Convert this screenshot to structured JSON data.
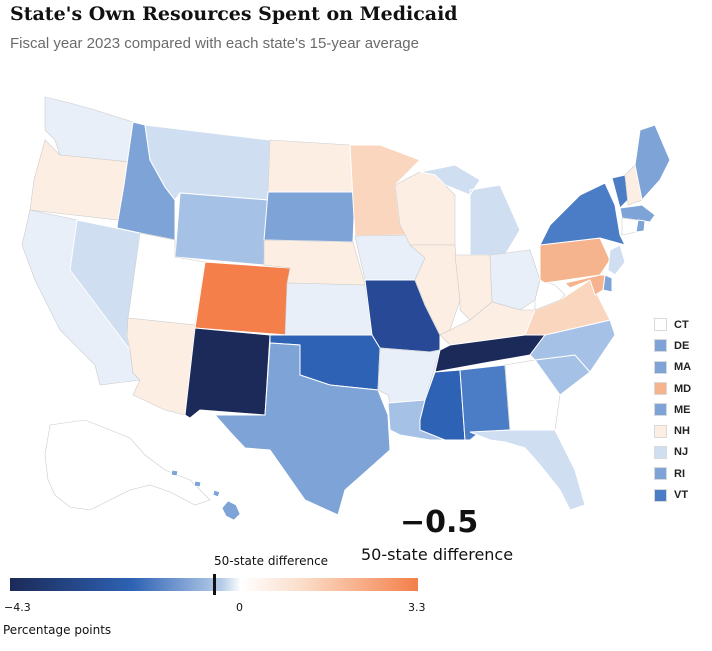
{
  "title": "State's Own Resources Spent on Medicaid",
  "subtitle": "Fiscal year 2023 compared with each state's 15-year average",
  "colors": {
    "darkest_navy": "#1b2a58",
    "dark_blue": "#284a96",
    "mid_blue": "#2e62b4",
    "blue": "#4b7cc6",
    "light_blue": "#7ea3d7",
    "pale_blue": "#a6c1e6",
    "very_pale_blue": "#cfdff1",
    "faint_blue": "#e8eff8",
    "white": "#ffffff",
    "faint_orange": "#fdeee4",
    "pale_orange": "#f9d6bd",
    "light_orange": "#f5b48d",
    "orange": "#f47f4a",
    "border": "#ffffff",
    "outline": "#cccccc"
  },
  "map": {
    "states": [
      {
        "abbr": "WA",
        "fill": "faint_blue"
      },
      {
        "abbr": "OR",
        "fill": "faint_orange"
      },
      {
        "abbr": "CA",
        "fill": "faint_blue"
      },
      {
        "abbr": "NV",
        "fill": "very_pale_blue"
      },
      {
        "abbr": "ID",
        "fill": "light_blue"
      },
      {
        "abbr": "MT",
        "fill": "very_pale_blue"
      },
      {
        "abbr": "WY",
        "fill": "pale_blue"
      },
      {
        "abbr": "UT",
        "fill": "white"
      },
      {
        "abbr": "AZ",
        "fill": "faint_orange"
      },
      {
        "abbr": "CO",
        "fill": "orange"
      },
      {
        "abbr": "NM",
        "fill": "darkest_navy"
      },
      {
        "abbr": "ND",
        "fill": "faint_orange"
      },
      {
        "abbr": "SD",
        "fill": "light_blue"
      },
      {
        "abbr": "NE",
        "fill": "faint_orange"
      },
      {
        "abbr": "KS",
        "fill": "faint_blue"
      },
      {
        "abbr": "OK",
        "fill": "mid_blue"
      },
      {
        "abbr": "TX",
        "fill": "light_blue"
      },
      {
        "abbr": "MN",
        "fill": "pale_orange"
      },
      {
        "abbr": "IA",
        "fill": "faint_blue"
      },
      {
        "abbr": "MO",
        "fill": "dark_blue"
      },
      {
        "abbr": "AR",
        "fill": "faint_blue"
      },
      {
        "abbr": "LA",
        "fill": "pale_blue"
      },
      {
        "abbr": "WI",
        "fill": "faint_orange"
      },
      {
        "abbr": "IL",
        "fill": "faint_orange"
      },
      {
        "abbr": "MI",
        "fill": "very_pale_blue"
      },
      {
        "abbr": "IN",
        "fill": "faint_orange"
      },
      {
        "abbr": "OH",
        "fill": "faint_blue"
      },
      {
        "abbr": "KY",
        "fill": "faint_orange"
      },
      {
        "abbr": "TN",
        "fill": "darkest_navy"
      },
      {
        "abbr": "MS",
        "fill": "mid_blue"
      },
      {
        "abbr": "AL",
        "fill": "blue"
      },
      {
        "abbr": "GA",
        "fill": "white"
      },
      {
        "abbr": "FL",
        "fill": "very_pale_blue"
      },
      {
        "abbr": "SC",
        "fill": "pale_blue"
      },
      {
        "abbr": "NC",
        "fill": "pale_blue"
      },
      {
        "abbr": "VA",
        "fill": "pale_orange"
      },
      {
        "abbr": "WV",
        "fill": "white"
      },
      {
        "abbr": "PA",
        "fill": "light_orange"
      },
      {
        "abbr": "NY",
        "fill": "blue"
      },
      {
        "abbr": "VT",
        "fill": "blue"
      },
      {
        "abbr": "NH",
        "fill": "faint_orange"
      },
      {
        "abbr": "ME",
        "fill": "light_blue"
      },
      {
        "abbr": "MA",
        "fill": "light_blue"
      },
      {
        "abbr": "CT",
        "fill": "white"
      },
      {
        "abbr": "RI",
        "fill": "light_blue"
      },
      {
        "abbr": "NJ",
        "fill": "very_pale_blue"
      },
      {
        "abbr": "DE",
        "fill": "light_blue"
      },
      {
        "abbr": "MD",
        "fill": "light_orange"
      },
      {
        "abbr": "AK",
        "fill": "white"
      },
      {
        "abbr": "HI",
        "fill": "light_blue"
      }
    ]
  },
  "small_states_legend": [
    {
      "abbr": "CT",
      "fill": "white"
    },
    {
      "abbr": "DE",
      "fill": "light_blue"
    },
    {
      "abbr": "MA",
      "fill": "light_blue"
    },
    {
      "abbr": "MD",
      "fill": "light_orange"
    },
    {
      "abbr": "ME",
      "fill": "light_blue"
    },
    {
      "abbr": "NH",
      "fill": "faint_orange"
    },
    {
      "abbr": "NJ",
      "fill": "very_pale_blue"
    },
    {
      "abbr": "RI",
      "fill": "light_blue"
    },
    {
      "abbr": "VT",
      "fill": "blue"
    }
  ],
  "highlight": {
    "value": "−0.5",
    "label": "50-state difference"
  },
  "color_scale": {
    "min_label": "−4.3",
    "mid_label": "0",
    "max_label": "3.3",
    "min": -4.3,
    "max": 3.3,
    "marker_value": -0.5,
    "marker_label": "50-state difference",
    "unit_label": "Percentage points"
  }
}
